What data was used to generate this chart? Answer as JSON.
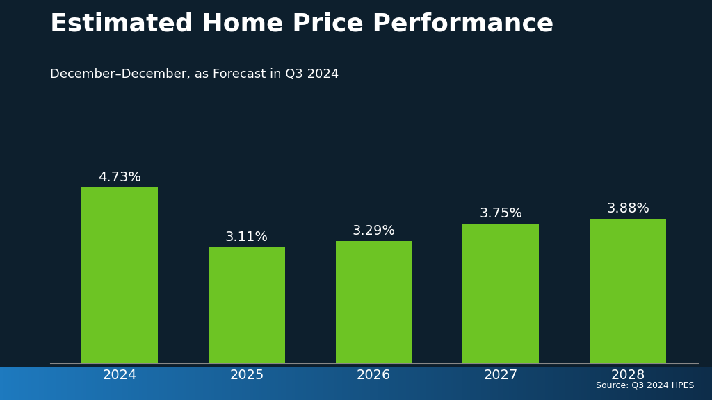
{
  "title": "Estimated Home Price Performance",
  "subtitle": "December–December, as Forecast in Q3 2024",
  "source": "Source: Q3 2024 HPES",
  "categories": [
    "2024",
    "2025",
    "2026",
    "2027",
    "2028"
  ],
  "values": [
    4.73,
    3.11,
    3.29,
    3.75,
    3.88
  ],
  "labels": [
    "4.73%",
    "3.11%",
    "3.29%",
    "3.75%",
    "3.88%"
  ],
  "bar_color": "#6DC424",
  "background_color": "#0d1f2d",
  "footer_color_left": "#1e7abf",
  "footer_color_right": "#0d2d4a",
  "text_color": "#ffffff",
  "title_fontsize": 26,
  "subtitle_fontsize": 13,
  "label_fontsize": 14,
  "tick_fontsize": 14,
  "source_fontsize": 9,
  "ylim": [
    0,
    5.8
  ],
  "bar_width": 0.6
}
